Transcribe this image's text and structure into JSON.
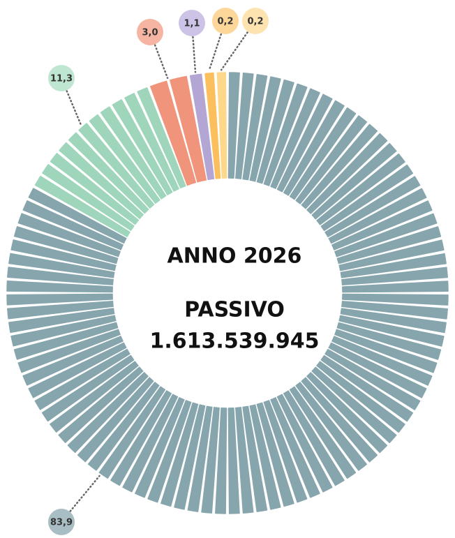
{
  "chart_data": {
    "type": "donut",
    "center_texts": [
      "ANNO 2026",
      "PASSIVO",
      "1.613.539.945"
    ],
    "values": [
      83.9,
      11.3,
      3.0,
      1.1,
      0.2,
      0.2
    ],
    "value_labels": [
      "83,9",
      "11,3",
      "3,0",
      "1,1",
      "0,2",
      "0,2"
    ],
    "colors": [
      "#86a5ad",
      "#9fd6bb",
      "#f0957c",
      "#b3a6d4",
      "#fbbf5e",
      "#fdd88a"
    ]
  }
}
